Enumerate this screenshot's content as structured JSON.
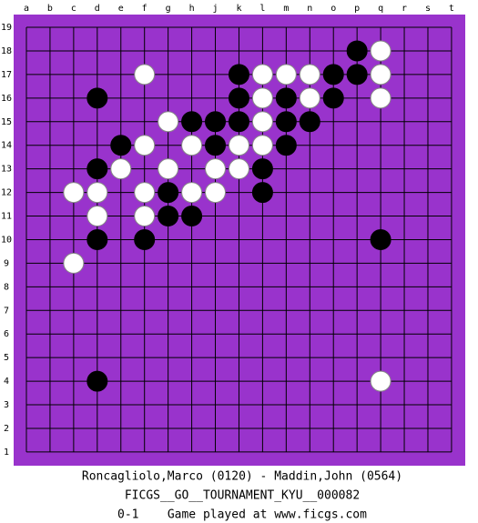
{
  "board": {
    "columns": [
      "a",
      "b",
      "c",
      "d",
      "e",
      "f",
      "g",
      "h",
      "j",
      "k",
      "l",
      "m",
      "n",
      "o",
      "p",
      "q",
      "r",
      "s",
      "t"
    ],
    "rows": [
      19,
      18,
      17,
      16,
      15,
      14,
      13,
      12,
      11,
      10,
      9,
      8,
      7,
      6,
      5,
      4,
      3,
      2,
      1
    ],
    "background": "#9933cc",
    "stones": [
      {
        "color": "black",
        "col": "p",
        "row": 18
      },
      {
        "color": "white",
        "col": "q",
        "row": 18
      },
      {
        "color": "white",
        "col": "f",
        "row": 17
      },
      {
        "color": "black",
        "col": "k",
        "row": 17
      },
      {
        "color": "white",
        "col": "l",
        "row": 17
      },
      {
        "color": "white",
        "col": "m",
        "row": 17
      },
      {
        "color": "white",
        "col": "n",
        "row": 17
      },
      {
        "color": "black",
        "col": "o",
        "row": 17
      },
      {
        "color": "black",
        "col": "p",
        "row": 17
      },
      {
        "color": "white",
        "col": "q",
        "row": 17
      },
      {
        "color": "black",
        "col": "d",
        "row": 16
      },
      {
        "color": "black",
        "col": "k",
        "row": 16
      },
      {
        "color": "white",
        "col": "l",
        "row": 16
      },
      {
        "color": "black",
        "col": "m",
        "row": 16
      },
      {
        "color": "white",
        "col": "n",
        "row": 16
      },
      {
        "color": "black",
        "col": "o",
        "row": 16
      },
      {
        "color": "white",
        "col": "q",
        "row": 16
      },
      {
        "color": "white",
        "col": "g",
        "row": 15
      },
      {
        "color": "black",
        "col": "h",
        "row": 15
      },
      {
        "color": "black",
        "col": "j",
        "row": 15
      },
      {
        "color": "black",
        "col": "k",
        "row": 15
      },
      {
        "color": "white",
        "col": "l",
        "row": 15
      },
      {
        "color": "black",
        "col": "m",
        "row": 15
      },
      {
        "color": "black",
        "col": "n",
        "row": 15
      },
      {
        "color": "black",
        "col": "e",
        "row": 14
      },
      {
        "color": "white",
        "col": "f",
        "row": 14
      },
      {
        "color": "white",
        "col": "h",
        "row": 14
      },
      {
        "color": "black",
        "col": "j",
        "row": 14
      },
      {
        "color": "white",
        "col": "k",
        "row": 14
      },
      {
        "color": "white",
        "col": "l",
        "row": 14
      },
      {
        "color": "black",
        "col": "m",
        "row": 14
      },
      {
        "color": "black",
        "col": "d",
        "row": 13
      },
      {
        "color": "white",
        "col": "e",
        "row": 13
      },
      {
        "color": "white",
        "col": "g",
        "row": 13
      },
      {
        "color": "white",
        "col": "j",
        "row": 13
      },
      {
        "color": "white",
        "col": "k",
        "row": 13
      },
      {
        "color": "black",
        "col": "l",
        "row": 13
      },
      {
        "color": "white",
        "col": "c",
        "row": 12
      },
      {
        "color": "white",
        "col": "d",
        "row": 12
      },
      {
        "color": "white",
        "col": "f",
        "row": 12
      },
      {
        "color": "black",
        "col": "g",
        "row": 12
      },
      {
        "color": "white",
        "col": "h",
        "row": 12
      },
      {
        "color": "white",
        "col": "j",
        "row": 12
      },
      {
        "color": "black",
        "col": "l",
        "row": 12
      },
      {
        "color": "white",
        "col": "d",
        "row": 11
      },
      {
        "color": "white",
        "col": "f",
        "row": 11
      },
      {
        "color": "black",
        "col": "g",
        "row": 11
      },
      {
        "color": "black",
        "col": "h",
        "row": 11
      },
      {
        "color": "black",
        "col": "d",
        "row": 10
      },
      {
        "color": "black",
        "col": "f",
        "row": 10
      },
      {
        "color": "black",
        "col": "q",
        "row": 10
      },
      {
        "color": "white",
        "col": "c",
        "row": 9
      },
      {
        "color": "black",
        "col": "d",
        "row": 4
      },
      {
        "color": "white",
        "col": "q",
        "row": 4
      }
    ]
  },
  "footer": [
    "Roncagliolo,Marco (0120) - Maddin,John (0564)",
    "FICGS__GO__TOURNAMENT_KYU__000082",
    "0-1    Game played at www.ficgs.com"
  ]
}
